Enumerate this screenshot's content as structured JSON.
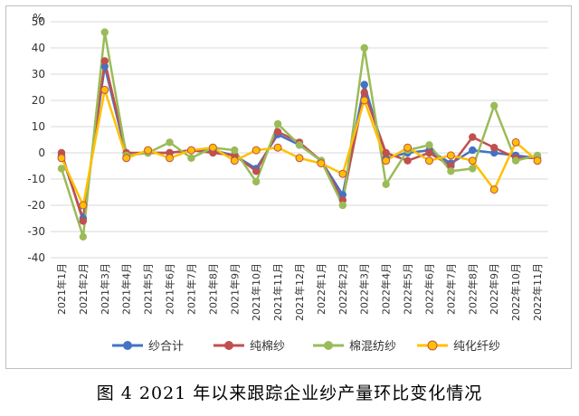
{
  "caption": "图 4   2021 年以来跟踪企业纱产量环比变化情况",
  "chart_data": {
    "type": "line",
    "title": "",
    "ylabel": "%",
    "ylim": [
      -40,
      50
    ],
    "yticks": [
      50,
      40,
      30,
      20,
      10,
      0,
      -10,
      -20,
      -30,
      -40
    ],
    "grid": true,
    "legend_position": "bottom",
    "categories": [
      "2021年1月",
      "2021年2月",
      "2021年3月",
      "2021年4月",
      "2021年5月",
      "2021年6月",
      "2021年7月",
      "2021年8月",
      "2021年9月",
      "2021年10月",
      "2021年11月",
      "2021年12月",
      "2022年1月",
      "2022年2月",
      "2022年3月",
      "2022年4月",
      "2022年5月",
      "2022年6月",
      "2022年7月",
      "2022年8月",
      "2022年9月",
      "2022年10月",
      "2022年11月"
    ],
    "series": [
      {
        "name": "纱合计",
        "color": "#4472C4",
        "values": [
          -1,
          -25,
          33,
          -1,
          0,
          0,
          1,
          1,
          -1,
          -6,
          7,
          3,
          -3,
          -16,
          26,
          -2,
          0,
          1,
          -4,
          1,
          0,
          -1,
          -2
        ]
      },
      {
        "name": "纯棉纱",
        "color": "#C0504D",
        "values": [
          0,
          -26,
          35,
          0,
          0,
          0,
          1,
          0,
          -1,
          -7,
          8,
          4,
          -3,
          -18,
          23,
          0,
          -3,
          0,
          -5,
          6,
          2,
          -2,
          -2
        ]
      },
      {
        "name": "棉混纺纱",
        "color": "#9BBB59",
        "values": [
          -6,
          -32,
          46,
          -1,
          0,
          4,
          -2,
          2,
          1,
          -11,
          11,
          3,
          -3,
          -20,
          40,
          -12,
          1,
          3,
          -7,
          -6,
          18,
          -3,
          -1
        ]
      },
      {
        "name": "纯化纤纱",
        "color": "#FFC000",
        "values": [
          -2,
          -20,
          24,
          -2,
          1,
          -2,
          1,
          2,
          -3,
          1,
          2,
          -2,
          -4,
          -8,
          20,
          -3,
          2,
          -3,
          -1,
          -3,
          -14,
          4,
          -3
        ]
      }
    ]
  }
}
